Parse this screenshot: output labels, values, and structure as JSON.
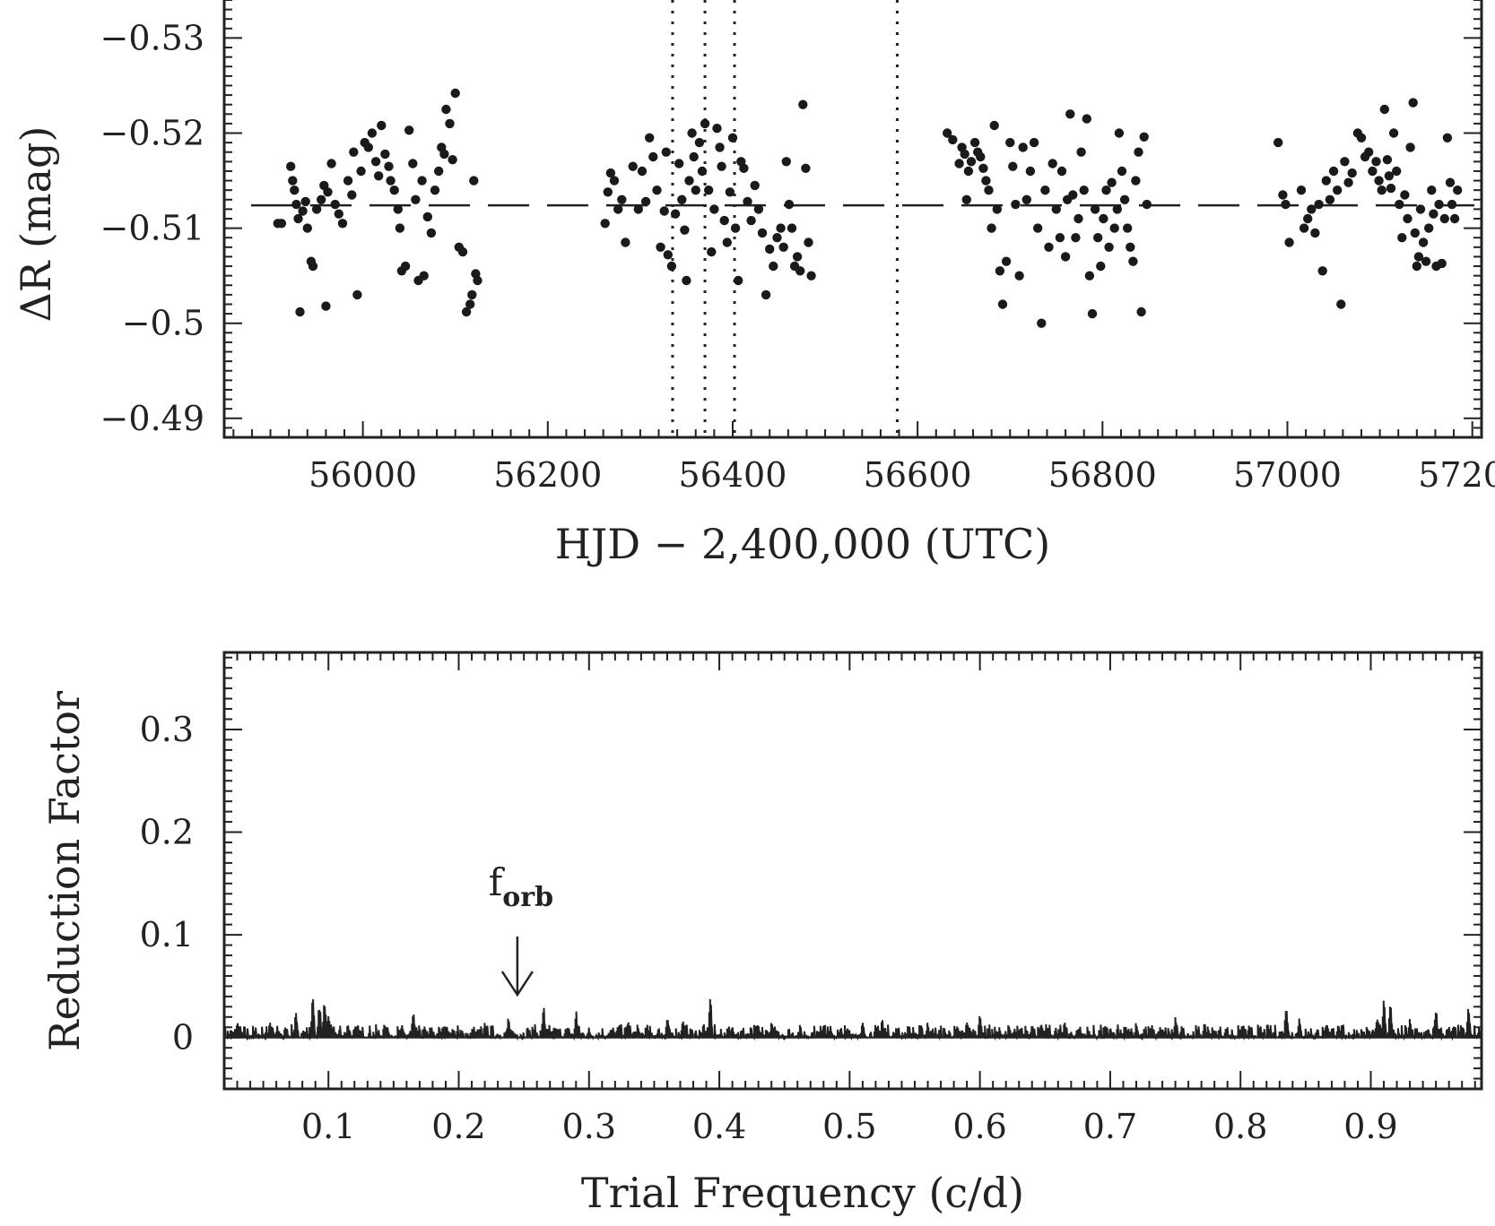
{
  "charts": {
    "lightcurve": {
      "xlabel": "HJD − 2,400,000 (UTC)",
      "ylabel": "ΔR (mag)",
      "xticks": [
        "56000",
        "56200",
        "56400",
        "56600",
        "56800",
        "57000",
        "57200"
      ],
      "yticks": [
        "−0.53",
        "−0.52",
        "−0.51",
        "−0.5",
        "−0.49"
      ]
    },
    "periodogram": {
      "xlabel": "Trial Frequency (c/d)",
      "ylabel": "Reduction Factor",
      "xticks": [
        "0.1",
        "0.2",
        "0.3",
        "0.4",
        "0.5",
        "0.6",
        "0.7",
        "0.8",
        "0.9"
      ],
      "yticks": [
        "0.3",
        "0.2",
        "0.1",
        "0"
      ],
      "annotation": {
        "label": "f",
        "subscript": "orb",
        "x": 0.245
      }
    }
  },
  "chart_data": [
    {
      "type": "scatter",
      "xlabel": "HJD − 2,400,000 (UTC)",
      "ylabel": "ΔR (mag)",
      "xlim": [
        55850,
        57210
      ],
      "ylim": [
        -0.534,
        -0.488
      ],
      "y_inverted": true,
      "mean_line": -0.5124,
      "vertical_dotted_lines": [
        56335,
        56370,
        56402,
        56578
      ],
      "points": [
        [
          55908,
          -0.5105
        ],
        [
          55912,
          -0.5105
        ],
        [
          55922,
          -0.5165
        ],
        [
          55924,
          -0.515
        ],
        [
          55926,
          -0.514
        ],
        [
          55928,
          -0.5125
        ],
        [
          55930,
          -0.511
        ],
        [
          55932,
          -0.5012
        ],
        [
          55935,
          -0.5118
        ],
        [
          55938,
          -0.5128
        ],
        [
          55940,
          -0.51
        ],
        [
          55944,
          -0.5065
        ],
        [
          55946,
          -0.506
        ],
        [
          55950,
          -0.512
        ],
        [
          55955,
          -0.513
        ],
        [
          55958,
          -0.5145
        ],
        [
          55960,
          -0.5018
        ],
        [
          55962,
          -0.5138
        ],
        [
          55966,
          -0.5168
        ],
        [
          55970,
          -0.5125
        ],
        [
          55974,
          -0.5115
        ],
        [
          55978,
          -0.5105
        ],
        [
          55984,
          -0.515
        ],
        [
          55988,
          -0.5135
        ],
        [
          55990,
          -0.518
        ],
        [
          55994,
          -0.503
        ],
        [
          55998,
          -0.516
        ],
        [
          56002,
          -0.519
        ],
        [
          56006,
          -0.5185
        ],
        [
          56010,
          -0.52
        ],
        [
          56014,
          -0.517
        ],
        [
          56017,
          -0.5155
        ],
        [
          56020,
          -0.5208
        ],
        [
          56024,
          -0.5178
        ],
        [
          56028,
          -0.5165
        ],
        [
          56030,
          -0.515
        ],
        [
          56034,
          -0.514
        ],
        [
          56038,
          -0.512
        ],
        [
          56040,
          -0.51
        ],
        [
          56042,
          -0.5055
        ],
        [
          56046,
          -0.506
        ],
        [
          56050,
          -0.5203
        ],
        [
          56054,
          -0.5168
        ],
        [
          56057,
          -0.513
        ],
        [
          56060,
          -0.5045
        ],
        [
          56064,
          -0.515
        ],
        [
          56066,
          -0.505
        ],
        [
          56070,
          -0.5112
        ],
        [
          56074,
          -0.5095
        ],
        [
          56078,
          -0.514
        ],
        [
          56082,
          -0.516
        ],
        [
          56085,
          -0.5185
        ],
        [
          56088,
          -0.5178
        ],
        [
          56090,
          -0.5225
        ],
        [
          56094,
          -0.521
        ],
        [
          56097,
          -0.5172
        ],
        [
          56100,
          -0.5242
        ],
        [
          56104,
          -0.508
        ],
        [
          56108,
          -0.5075
        ],
        [
          56112,
          -0.5012
        ],
        [
          56116,
          -0.502
        ],
        [
          56118,
          -0.503
        ],
        [
          56120,
          -0.515
        ],
        [
          56122,
          -0.5052
        ],
        [
          56124,
          -0.5045
        ],
        [
          56262,
          -0.5105
        ],
        [
          56265,
          -0.5138
        ],
        [
          56268,
          -0.5158
        ],
        [
          56272,
          -0.515
        ],
        [
          56276,
          -0.512
        ],
        [
          56280,
          -0.513
        ],
        [
          56284,
          -0.5085
        ],
        [
          56292,
          -0.5165
        ],
        [
          56298,
          -0.512
        ],
        [
          56302,
          -0.516
        ],
        [
          56306,
          -0.5128
        ],
        [
          56310,
          -0.5195
        ],
        [
          56314,
          -0.5175
        ],
        [
          56318,
          -0.514
        ],
        [
          56322,
          -0.508
        ],
        [
          56326,
          -0.5118
        ],
        [
          56328,
          -0.518
        ],
        [
          56330,
          -0.5072
        ],
        [
          56334,
          -0.506
        ],
        [
          56338,
          -0.5115
        ],
        [
          56342,
          -0.5168
        ],
        [
          56345,
          -0.513
        ],
        [
          56348,
          -0.5098
        ],
        [
          56350,
          -0.5045
        ],
        [
          56353,
          -0.515
        ],
        [
          56356,
          -0.52
        ],
        [
          56358,
          -0.5175
        ],
        [
          56360,
          -0.514
        ],
        [
          56364,
          -0.519
        ],
        [
          56367,
          -0.516
        ],
        [
          56370,
          -0.521
        ],
        [
          56374,
          -0.514
        ],
        [
          56377,
          -0.5075
        ],
        [
          56380,
          -0.512
        ],
        [
          56383,
          -0.5205
        ],
        [
          56386,
          -0.5185
        ],
        [
          56388,
          -0.5165
        ],
        [
          56391,
          -0.5108
        ],
        [
          56394,
          -0.5085
        ],
        [
          56397,
          -0.5138
        ],
        [
          56400,
          -0.5195
        ],
        [
          56403,
          -0.51
        ],
        [
          56406,
          -0.5045
        ],
        [
          56409,
          -0.517
        ],
        [
          56412,
          -0.5163
        ],
        [
          56416,
          -0.5128
        ],
        [
          56420,
          -0.5108
        ],
        [
          56424,
          -0.5145
        ],
        [
          56428,
          -0.512
        ],
        [
          56432,
          -0.5095
        ],
        [
          56436,
          -0.503
        ],
        [
          56440,
          -0.5078
        ],
        [
          56444,
          -0.506
        ],
        [
          56448,
          -0.509
        ],
        [
          56452,
          -0.51
        ],
        [
          56455,
          -0.508
        ],
        [
          56458,
          -0.517
        ],
        [
          56461,
          -0.5125
        ],
        [
          56464,
          -0.51
        ],
        [
          56467,
          -0.506
        ],
        [
          56470,
          -0.507
        ],
        [
          56473,
          -0.5055
        ],
        [
          56476,
          -0.523
        ],
        [
          56479,
          -0.5163
        ],
        [
          56482,
          -0.5085
        ],
        [
          56485,
          -0.505
        ],
        [
          56632,
          -0.52
        ],
        [
          56638,
          -0.5193
        ],
        [
          56645,
          -0.5168
        ],
        [
          56648,
          -0.5185
        ],
        [
          56651,
          -0.5178
        ],
        [
          56653,
          -0.513
        ],
        [
          56655,
          -0.516
        ],
        [
          56658,
          -0.517
        ],
        [
          56662,
          -0.519
        ],
        [
          56665,
          -0.518
        ],
        [
          56668,
          -0.5175
        ],
        [
          56671,
          -0.5163
        ],
        [
          56674,
          -0.515
        ],
        [
          56677,
          -0.514
        ],
        [
          56680,
          -0.51
        ],
        [
          56683,
          -0.5208
        ],
        [
          56686,
          -0.512
        ],
        [
          56689,
          -0.5055
        ],
        [
          56692,
          -0.502
        ],
        [
          56696,
          -0.5065
        ],
        [
          56700,
          -0.519
        ],
        [
          56703,
          -0.5165
        ],
        [
          56706,
          -0.5125
        ],
        [
          56710,
          -0.505
        ],
        [
          56714,
          -0.5185
        ],
        [
          56718,
          -0.513
        ],
        [
          56722,
          -0.516
        ],
        [
          56726,
          -0.519
        ],
        [
          56730,
          -0.51
        ],
        [
          56734,
          -0.5
        ],
        [
          56738,
          -0.514
        ],
        [
          56742,
          -0.508
        ],
        [
          56746,
          -0.5168
        ],
        [
          56750,
          -0.512
        ],
        [
          56754,
          -0.509
        ],
        [
          56756,
          -0.516
        ],
        [
          56760,
          -0.507
        ],
        [
          56762,
          -0.513
        ],
        [
          56765,
          -0.522
        ],
        [
          56768,
          -0.5135
        ],
        [
          56771,
          -0.509
        ],
        [
          56774,
          -0.511
        ],
        [
          56777,
          -0.518
        ],
        [
          56780,
          -0.514
        ],
        [
          56783,
          -0.5215
        ],
        [
          56786,
          -0.505
        ],
        [
          56789,
          -0.501
        ],
        [
          56792,
          -0.512
        ],
        [
          56795,
          -0.509
        ],
        [
          56798,
          -0.506
        ],
        [
          56801,
          -0.511
        ],
        [
          56804,
          -0.514
        ],
        [
          56807,
          -0.508
        ],
        [
          56810,
          -0.5148
        ],
        [
          56813,
          -0.51
        ],
        [
          56816,
          -0.512
        ],
        [
          56818,
          -0.52
        ],
        [
          56821,
          -0.516
        ],
        [
          56824,
          -0.513
        ],
        [
          56827,
          -0.51
        ],
        [
          56830,
          -0.508
        ],
        [
          56833,
          -0.5065
        ],
        [
          56836,
          -0.515
        ],
        [
          56839,
          -0.518
        ],
        [
          56842,
          -0.5012
        ],
        [
          56845,
          -0.5196
        ],
        [
          56848,
          -0.5125
        ],
        [
          56990,
          -0.519
        ],
        [
          56995,
          -0.5135
        ],
        [
          56998,
          -0.5125
        ],
        [
          57002,
          -0.5085
        ],
        [
          57015,
          -0.514
        ],
        [
          57018,
          -0.51
        ],
        [
          57022,
          -0.511
        ],
        [
          57026,
          -0.512
        ],
        [
          57030,
          -0.5095
        ],
        [
          57034,
          -0.5125
        ],
        [
          57038,
          -0.5055
        ],
        [
          57042,
          -0.515
        ],
        [
          57046,
          -0.513
        ],
        [
          57050,
          -0.516
        ],
        [
          57054,
          -0.514
        ],
        [
          57058,
          -0.502
        ],
        [
          57062,
          -0.517
        ],
        [
          57066,
          -0.5148
        ],
        [
          57070,
          -0.5158
        ],
        [
          57076,
          -0.52
        ],
        [
          57080,
          -0.5195
        ],
        [
          57084,
          -0.5175
        ],
        [
          57088,
          -0.518
        ],
        [
          57092,
          -0.516
        ],
        [
          57096,
          -0.517
        ],
        [
          57099,
          -0.515
        ],
        [
          57102,
          -0.514
        ],
        [
          57105,
          -0.5225
        ],
        [
          57108,
          -0.5172
        ],
        [
          57110,
          -0.5155
        ],
        [
          57112,
          -0.5142
        ],
        [
          57115,
          -0.52
        ],
        [
          57118,
          -0.516
        ],
        [
          57121,
          -0.5125
        ],
        [
          57124,
          -0.509
        ],
        [
          57127,
          -0.5135
        ],
        [
          57130,
          -0.511
        ],
        [
          57133,
          -0.5185
        ],
        [
          57136,
          -0.5232
        ],
        [
          57138,
          -0.5095
        ],
        [
          57140,
          -0.506
        ],
        [
          57142,
          -0.507
        ],
        [
          57144,
          -0.512
        ],
        [
          57147,
          -0.5085
        ],
        [
          57150,
          -0.5065
        ],
        [
          57153,
          -0.51
        ],
        [
          57156,
          -0.514
        ],
        [
          57158,
          -0.5115
        ],
        [
          57161,
          -0.506
        ],
        [
          57164,
          -0.5125
        ],
        [
          57167,
          -0.5063
        ],
        [
          57170,
          -0.511
        ],
        [
          57173,
          -0.5195
        ],
        [
          57176,
          -0.5148
        ],
        [
          57178,
          -0.5125
        ],
        [
          57181,
          -0.511
        ],
        [
          57184,
          -0.514
        ]
      ]
    },
    {
      "type": "line",
      "xlabel": "Trial Frequency (c/d)",
      "ylabel": "Reduction Factor",
      "xlim": [
        0.02,
        0.985
      ],
      "ylim": [
        -0.05,
        0.375
      ],
      "annotation": {
        "label": "f",
        "subscript": "orb",
        "x": 0.245
      },
      "peaks": [
        [
          0.03,
          0.018
        ],
        [
          0.055,
          0.017
        ],
        [
          0.075,
          0.025
        ],
        [
          0.088,
          0.04
        ],
        [
          0.093,
          0.038
        ],
        [
          0.097,
          0.04
        ],
        [
          0.1,
          0.026
        ],
        [
          0.115,
          0.015
        ],
        [
          0.145,
          0.014
        ],
        [
          0.165,
          0.026
        ],
        [
          0.19,
          0.012
        ],
        [
          0.22,
          0.015
        ],
        [
          0.238,
          0.019
        ],
        [
          0.265,
          0.033
        ],
        [
          0.29,
          0.028
        ],
        [
          0.33,
          0.016
        ],
        [
          0.36,
          0.021
        ],
        [
          0.372,
          0.017
        ],
        [
          0.393,
          0.045
        ],
        [
          0.41,
          0.012
        ],
        [
          0.44,
          0.015
        ],
        [
          0.48,
          0.016
        ],
        [
          0.51,
          0.016
        ],
        [
          0.525,
          0.02
        ],
        [
          0.56,
          0.016
        ],
        [
          0.59,
          0.018
        ],
        [
          0.6,
          0.025
        ],
        [
          0.64,
          0.016
        ],
        [
          0.665,
          0.018
        ],
        [
          0.7,
          0.01
        ],
        [
          0.72,
          0.016
        ],
        [
          0.75,
          0.02
        ],
        [
          0.775,
          0.012
        ],
        [
          0.8,
          0.01
        ],
        [
          0.835,
          0.038
        ],
        [
          0.845,
          0.02
        ],
        [
          0.875,
          0.016
        ],
        [
          0.905,
          0.022
        ],
        [
          0.91,
          0.047
        ],
        [
          0.915,
          0.04
        ],
        [
          0.93,
          0.02
        ],
        [
          0.95,
          0.03
        ],
        [
          0.975,
          0.033
        ]
      ]
    }
  ]
}
